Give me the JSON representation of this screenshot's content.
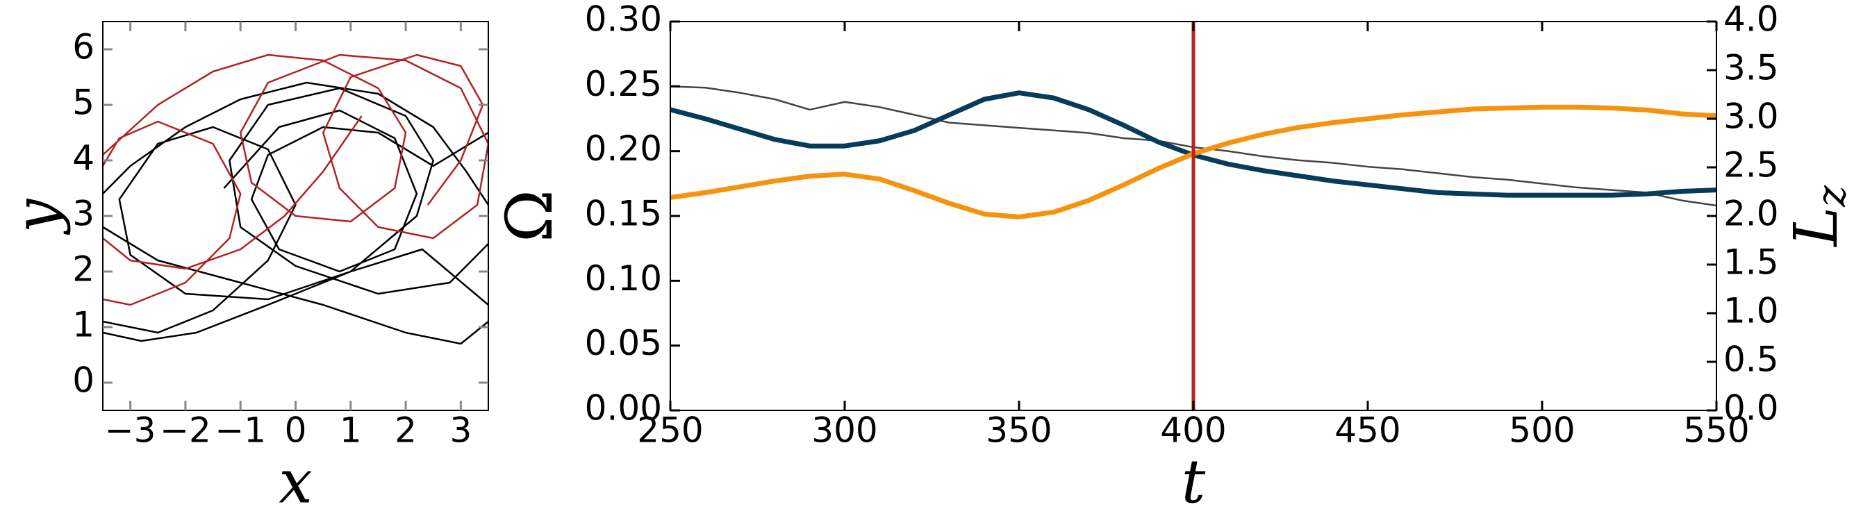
{
  "chart_data": [
    {
      "type": "line",
      "xlabel": "x",
      "ylabel": "y",
      "xlim": [
        -3.5,
        3.5
      ],
      "ylim": [
        -0.5,
        6.5
      ],
      "xticks": [
        {
          "value": -3,
          "label": "−3"
        },
        {
          "value": -2,
          "label": "−2"
        },
        {
          "value": -1,
          "label": "−1"
        },
        0,
        1,
        2,
        3
      ],
      "yticks": [
        0,
        1,
        2,
        3,
        4,
        5,
        6
      ],
      "series": [
        {
          "color": "#000000",
          "x": [
            -3.5,
            -2.5,
            -1.5,
            -0.5,
            0,
            -0.5,
            -1.5,
            -2.5,
            -3.2,
            -3,
            -2,
            -0.5,
            1,
            2.2,
            2.5,
            2,
            0.8,
            -0.5,
            -1.2,
            -1,
            0,
            1.5,
            2.8,
            3.5,
            null,
            -3.5,
            -2.8,
            -1.8,
            -0.5,
            1,
            2.3,
            3.5,
            null,
            -3.5,
            -3,
            -2,
            -1,
            0.2,
            1.5,
            2.5,
            3.1,
            3.5,
            null,
            -3.5,
            -2.5,
            -1,
            0.5,
            2,
            3,
            3.5,
            null,
            -1.3,
            -0.3,
            0.8,
            1.8,
            2.2,
            1.8,
            0.8,
            -0.3,
            -0.8,
            -0.5,
            0.5,
            1.5,
            2.5,
            3.5
          ],
          "values": [
            1.1,
            0.9,
            1.3,
            2.2,
            3.2,
            4.2,
            4.6,
            4.3,
            3.3,
            2.3,
            1.6,
            1.5,
            2,
            3,
            4,
            4.8,
            5.3,
            5,
            4,
            2.8,
            2.1,
            1.6,
            1.8,
            2.5,
            null,
            0.9,
            0.75,
            0.9,
            1.4,
            2,
            2.4,
            1.4,
            null,
            3.4,
            3.9,
            4.6,
            5.1,
            5.4,
            5.2,
            4.6,
            3.8,
            3.2,
            null,
            2.8,
            2.2,
            1.8,
            1.4,
            0.9,
            0.7,
            1.1,
            null,
            3.5,
            4.6,
            4.9,
            4.4,
            3.4,
            2.4,
            2,
            2.4,
            3.3,
            4.1,
            4.6,
            4.5,
            3.9,
            4.5
          ]
        },
        {
          "color": "#b22222",
          "x": [
            -3.5,
            -2.5,
            -1.5,
            -0.5,
            0.5,
            1.5,
            2,
            1.8,
            1,
            0,
            -0.8,
            -1,
            -0.5,
            0.8,
            2,
            3,
            3.5,
            3.3,
            2.5,
            1.5,
            0.8,
            0.5,
            1,
            2.2,
            3,
            3.4,
            3,
            2.4,
            null,
            -3.5,
            -3,
            -2,
            -1,
            -0.2,
            0.5,
            1.2,
            null,
            -3.5,
            -3,
            -2,
            -1.2,
            -1,
            -1.5,
            -2.5,
            -3.2,
            -3.5
          ],
          "values": [
            4.1,
            5,
            5.6,
            5.9,
            5.8,
            5.3,
            4.5,
            3.5,
            2.9,
            3,
            3.6,
            4.5,
            5.4,
            5.9,
            5.8,
            5.3,
            4.3,
            3.2,
            2.6,
            2.8,
            3.5,
            4.5,
            5.5,
            5.9,
            5.7,
            5,
            4,
            3.2,
            null,
            2.6,
            2.2,
            2.05,
            2.4,
            3,
            3.8,
            4.8,
            null,
            1.5,
            1.4,
            1.8,
            2.6,
            3.4,
            4.3,
            4.7,
            4.4,
            3.9
          ]
        }
      ]
    },
    {
      "type": "line",
      "xlabel": "t",
      "ylabel": "Ω",
      "y2label": {
        "base": "L",
        "sub": "z"
      },
      "xlim": [
        250,
        550
      ],
      "ylim": [
        0,
        0.3
      ],
      "y2lim": [
        0,
        4
      ],
      "xticks": [
        250,
        300,
        350,
        400,
        450,
        500,
        550
      ],
      "yticks": [
        {
          "value": 0,
          "label": "0.00"
        },
        0.05,
        {
          "value": 0.1,
          "label": "0.10"
        },
        0.15,
        {
          "value": 0.2,
          "label": "0.20"
        },
        0.25,
        {
          "value": 0.3,
          "label": "0.30"
        }
      ],
      "y2ticks": [
        {
          "value": 0,
          "label": "0.0"
        },
        0.5,
        {
          "value": 1,
          "label": "1.0"
        },
        1.5,
        {
          "value": 2,
          "label": "2.0"
        },
        2.5,
        {
          "value": 3,
          "label": "3.0"
        },
        3.5,
        {
          "value": 4,
          "label": "4.0"
        }
      ],
      "vline": 400,
      "vline_color": "#c0201e",
      "x": [
        250,
        260,
        270,
        280,
        290,
        300,
        310,
        320,
        330,
        340,
        350,
        360,
        370,
        380,
        390,
        400,
        410,
        420,
        430,
        440,
        450,
        460,
        470,
        480,
        490,
        500,
        510,
        520,
        530,
        540,
        550
      ],
      "series": [
        {
          "color": "#444444",
          "width": 2.5,
          "values": [
            0.25,
            0.249,
            0.245,
            0.24,
            0.232,
            0.238,
            0.234,
            0.228,
            0.222,
            0.22,
            0.218,
            0.216,
            0.214,
            0.21,
            0.208,
            0.203,
            0.2,
            0.196,
            0.193,
            0.191,
            0.188,
            0.186,
            0.183,
            0.18,
            0.178,
            0.175,
            0.172,
            0.17,
            0.168,
            0.162,
            0.158
          ]
        },
        {
          "color": "#073b5a",
          "width": 7,
          "values": [
            0.232,
            0.225,
            0.217,
            0.209,
            0.204,
            0.204,
            0.208,
            0.216,
            0.228,
            0.24,
            0.245,
            0.241,
            0.232,
            0.22,
            0.207,
            0.197,
            0.19,
            0.185,
            0.181,
            0.177,
            0.174,
            0.171,
            0.168,
            0.167,
            0.166,
            0.166,
            0.166,
            0.166,
            0.167,
            0.169,
            0.17
          ]
        },
        {
          "color": "#f7920f",
          "width": 7,
          "axis": "y2",
          "values": [
            2.19,
            2.24,
            2.3,
            2.36,
            2.41,
            2.43,
            2.38,
            2.26,
            2.13,
            2.02,
            1.99,
            2.04,
            2.16,
            2.32,
            2.49,
            2.64,
            2.75,
            2.84,
            2.91,
            2.96,
            3,
            3.04,
            3.07,
            3.1,
            3.11,
            3.12,
            3.12,
            3.11,
            3.09,
            3.05,
            3.03
          ]
        }
      ]
    }
  ]
}
